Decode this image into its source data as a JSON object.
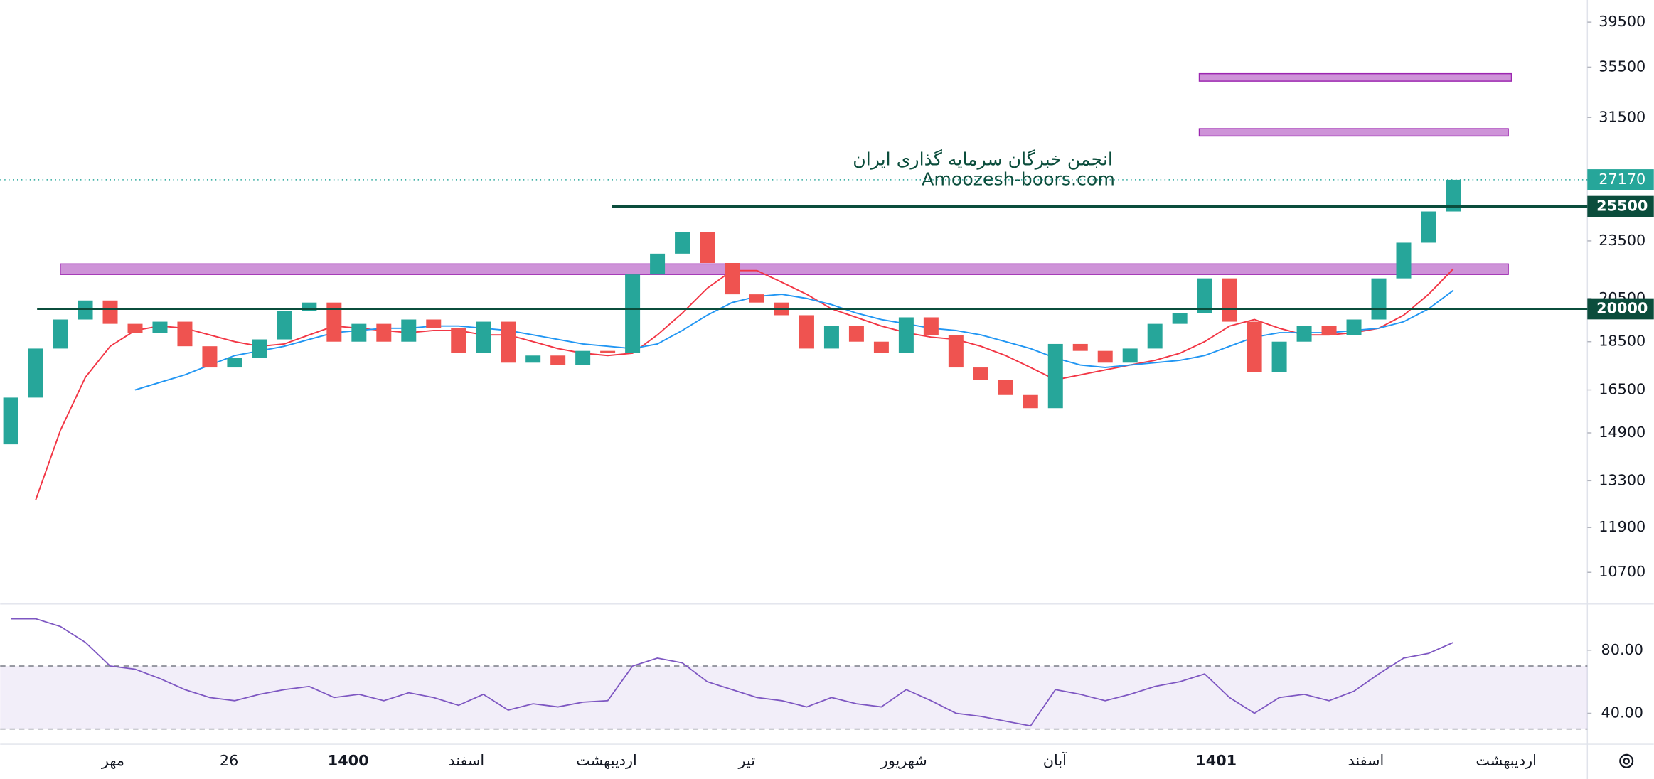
{
  "chart_data": {
    "type": "candlestick",
    "watermark": [
      "انجمن خبرگان سرمایه گذاری ایران",
      "Amoozesh-boors.com"
    ],
    "log_scale": true,
    "ylim": [
      9950,
      41630
    ],
    "yticks": [
      10700,
      11900,
      13300,
      14900,
      16500,
      18500,
      20500,
      23500,
      31500,
      35500,
      39500
    ],
    "up_color": "#26a69a",
    "down_color": "#ef5350",
    "open": [
      14500,
      16200,
      18200,
      19500,
      20400,
      19300,
      18900,
      19400,
      18300,
      17400,
      17800,
      18600,
      19900,
      20300,
      18500,
      19300,
      18500,
      19500,
      19100,
      18000,
      19400,
      17600,
      17900,
      17500,
      18100,
      18000,
      21700,
      22800,
      24000,
      22300,
      20700,
      20300,
      19700,
      18200,
      19200,
      18500,
      18000,
      19600,
      18800,
      17400,
      16900,
      16300,
      15800,
      18400,
      18100,
      17600,
      18200,
      19300,
      19800,
      21500,
      19400,
      17200,
      18500,
      19200,
      18800,
      19500,
      21500,
      23400,
      25200
    ],
    "close": [
      16200,
      18200,
      19500,
      20400,
      19300,
      18900,
      19400,
      18300,
      17400,
      17800,
      18600,
      19900,
      20300,
      18500,
      19300,
      18500,
      19500,
      19100,
      18000,
      19400,
      17600,
      17900,
      17500,
      18100,
      18000,
      21700,
      22800,
      24000,
      22300,
      20700,
      20300,
      19700,
      18200,
      19200,
      18500,
      18000,
      19600,
      18800,
      17400,
      16900,
      16300,
      15800,
      18400,
      18100,
      17600,
      18200,
      19300,
      19800,
      21500,
      19400,
      17200,
      18500,
      19200,
      18800,
      19500,
      21500,
      23400,
      25200,
      27170
    ],
    "series": [
      {
        "color": "#f23645",
        "values": [
          null,
          12700,
          15000,
          17000,
          18300,
          19000,
          19200,
          19100,
          18800,
          18500,
          18300,
          18400,
          18800,
          19200,
          19100,
          19000,
          18900,
          19000,
          19000,
          18800,
          18800,
          18500,
          18200,
          18000,
          17900,
          18000,
          18800,
          19800,
          21000,
          21900,
          21900,
          21300,
          20700,
          20000,
          19600,
          19200,
          18900,
          18700,
          18600,
          18300,
          17900,
          17400,
          16900,
          17100,
          17300,
          17500,
          17700,
          18000,
          18500,
          19200,
          19500,
          19100,
          18800,
          18800,
          18900,
          19100,
          19700,
          20700,
          22000
        ]
      },
      {
        "color": "#2196f3",
        "values": [
          null,
          null,
          null,
          null,
          null,
          16500,
          16800,
          17100,
          17500,
          17900,
          18100,
          18300,
          18600,
          18900,
          19000,
          19100,
          19100,
          19200,
          19200,
          19100,
          19000,
          18800,
          18600,
          18400,
          18300,
          18200,
          18400,
          19000,
          19700,
          20300,
          20600,
          20700,
          20500,
          20200,
          19800,
          19500,
          19300,
          19100,
          19000,
          18800,
          18500,
          18200,
          17800,
          17500,
          17400,
          17500,
          17600,
          17700,
          17900,
          18300,
          18700,
          18900,
          18900,
          18900,
          19000,
          19100,
          19400,
          20000,
          20900
        ]
      }
    ],
    "last_price": 27170,
    "last_price_color": "#26a69a",
    "levels": [
      25500,
      20000
    ],
    "level_color": "#0b4d3c",
    "zones": [
      {
        "low": 21700,
        "high": 22250
      },
      {
        "low": 30140,
        "high": 30670
      },
      {
        "low": 34340,
        "high": 34950
      }
    ],
    "zone_color": "#ce93d8",
    "rsi": {
      "color": "#7e57c2",
      "values": [
        100,
        100,
        95,
        85,
        70,
        68,
        62,
        55,
        50,
        48,
        52,
        55,
        57,
        50,
        52,
        48,
        53,
        50,
        45,
        52,
        42,
        46,
        44,
        47,
        48,
        70,
        75,
        72,
        60,
        55,
        50,
        48,
        44,
        50,
        46,
        44,
        55,
        48,
        40,
        38,
        35,
        32,
        55,
        52,
        48,
        52,
        57,
        60,
        65,
        50,
        40,
        50,
        52,
        48,
        54,
        65,
        75,
        78,
        85
      ],
      "ylim": [
        21,
        108
      ],
      "yticks": [
        {
          "value": 80,
          "label": "80.00"
        },
        {
          "value": 40,
          "label": "40.00"
        }
      ],
      "bands": [
        30,
        70
      ]
    },
    "x_labels": [
      "مهر",
      "26",
      "1400",
      "اسفند",
      "اردیبهشت",
      "تیر",
      "شهریور",
      "آبان",
      "1401",
      "اسفند",
      "اردیبهشت"
    ]
  }
}
